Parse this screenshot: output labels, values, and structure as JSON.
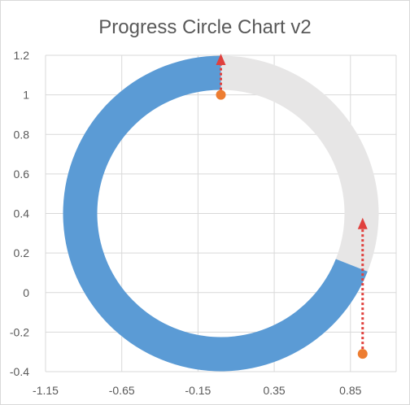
{
  "chart_data": {
    "type": "scatter",
    "title": "Progress Circle Chart v2",
    "xlabel": "",
    "ylabel": "",
    "xlim": [
      -1.15,
      1.15
    ],
    "ylim": [
      -0.4,
      1.2
    ],
    "x_ticks": [
      "-1.15",
      "-0.65",
      "-0.15",
      "0.35",
      "0.85"
    ],
    "x_tick_values": [
      -1.15,
      -0.65,
      -0.15,
      0.35,
      0.85
    ],
    "y_ticks": [
      "1.2",
      "1",
      "0.8",
      "0.6",
      "0.4",
      "0.2",
      "0",
      "-0.2",
      "-0.4"
    ],
    "y_tick_values": [
      1.2,
      1.0,
      0.8,
      0.6,
      0.4,
      0.2,
      0.0,
      -0.2,
      -0.4
    ],
    "grid": true,
    "legend": "none",
    "donut": {
      "center": [
        0,
        0.4
      ],
      "progress_fraction": 0.69,
      "progress_color": "#5B9BD5",
      "remainder_color": "#E7E6E6"
    },
    "points": [
      {
        "x": 0.0,
        "y": 1.0
      },
      {
        "x": 0.93,
        "y": -0.31
      }
    ],
    "arrows": [
      {
        "x": 0.0,
        "y_from": 1.0,
        "y_to": 1.2
      },
      {
        "x": 0.93,
        "y_from": -0.31,
        "y_to": 0.37
      }
    ],
    "point_color": "#ED7D31",
    "arrow_color": "#E0403D"
  }
}
